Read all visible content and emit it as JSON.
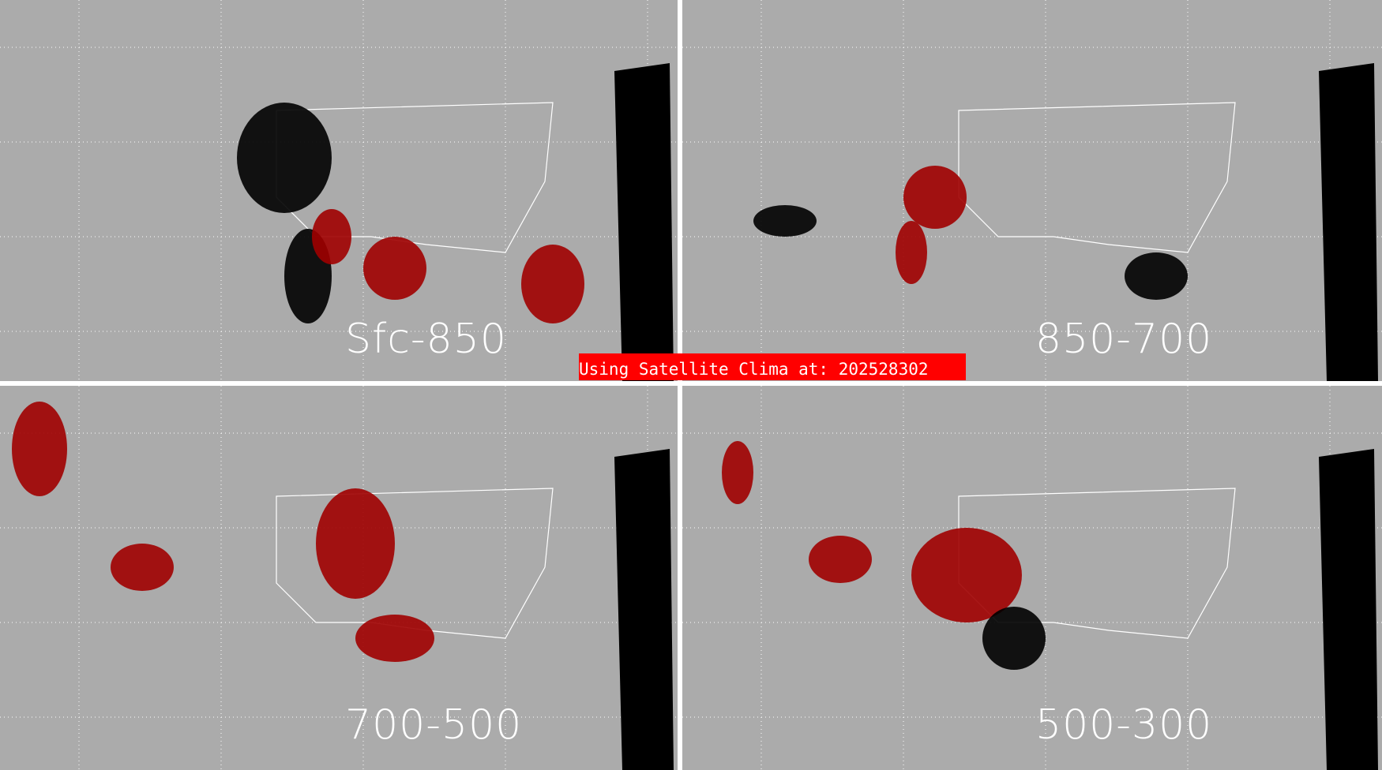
{
  "panels": [
    {
      "label": "Sfc-850"
    },
    {
      "label": "850-700"
    },
    {
      "label": "700-500"
    },
    {
      "label": "500-300"
    }
  ],
  "banner": {
    "text": "Using Satellite Clima at: 202528302"
  },
  "colors": {
    "background": "#ababab",
    "no_data": "#000000",
    "moisture_dark": "#a00000",
    "moisture_mid": "#9a7070",
    "moisture_high": "#ffb0b0",
    "banner": "#ff0000",
    "borders": "#ffffff"
  }
}
